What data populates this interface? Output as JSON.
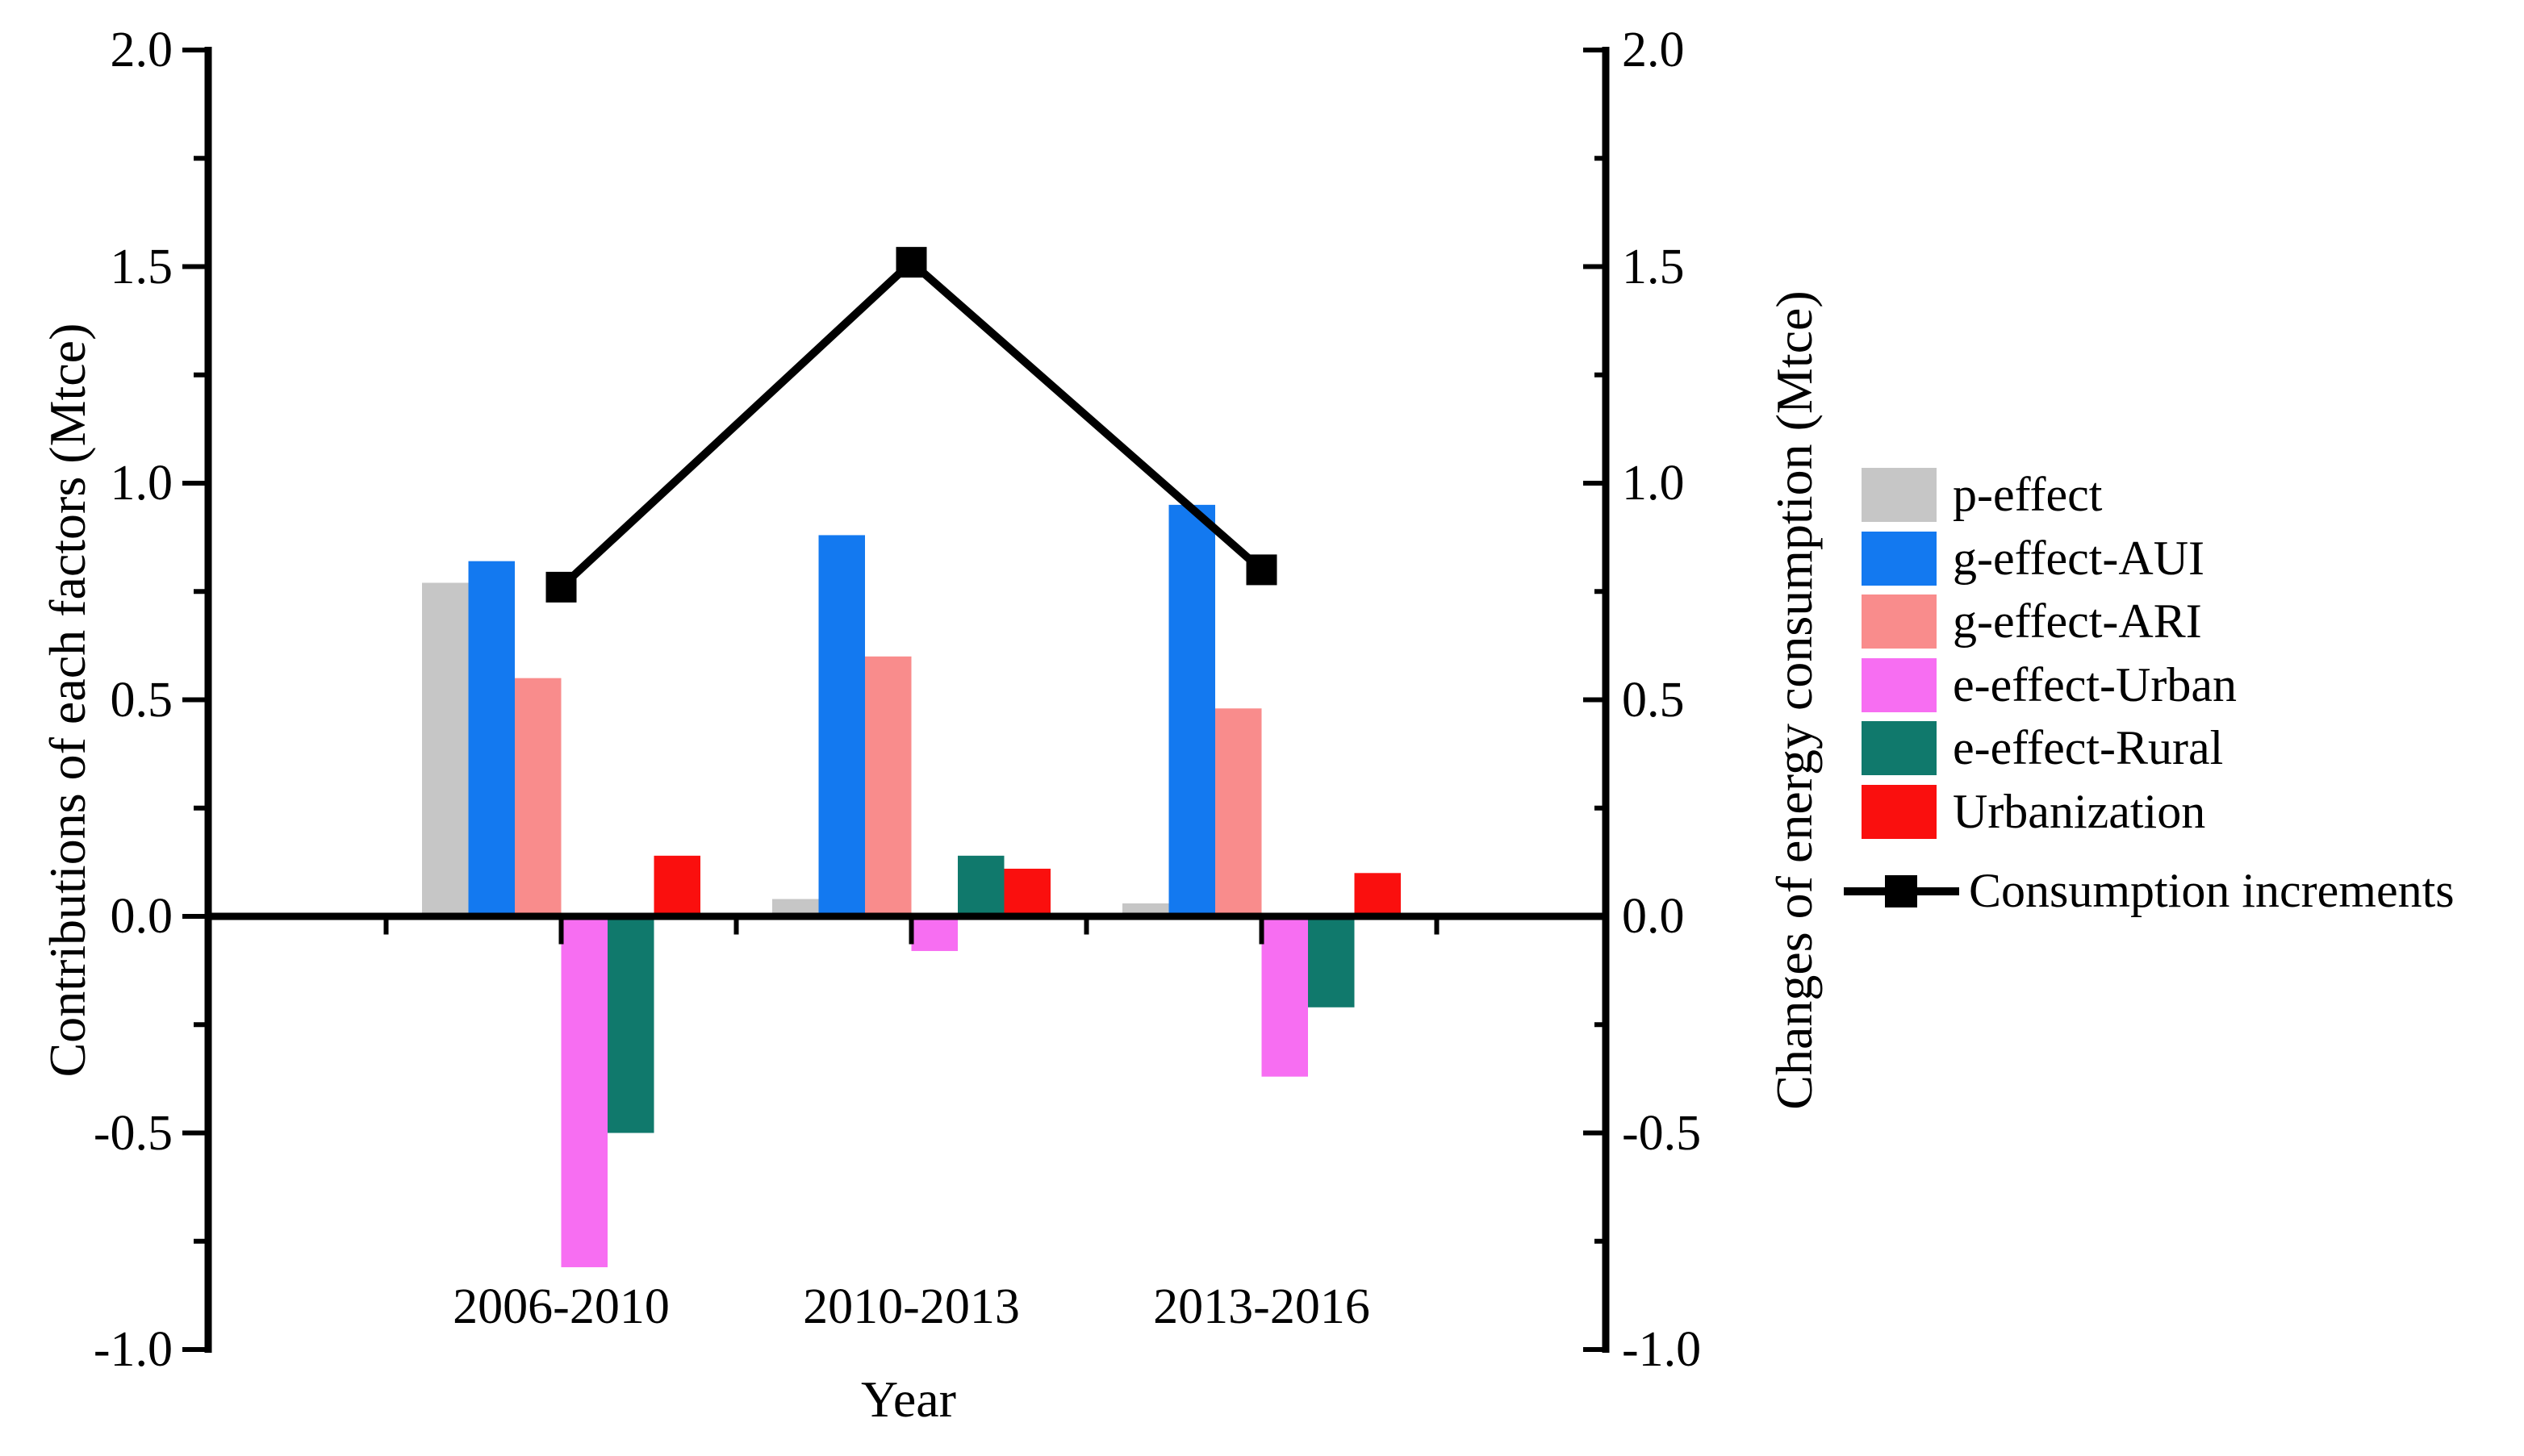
{
  "chart_data": {
    "type": "bar",
    "subtype": "grouped-bars-with-line-overlay-dual-axis",
    "categories": [
      "2006-2010",
      "2010-2013",
      "2013-2016"
    ],
    "series": [
      {
        "name": "p-effect",
        "type": "bar",
        "color": "#c6c6c6",
        "values": [
          0.77,
          0.04,
          0.03
        ]
      },
      {
        "name": "g-effect-AUI",
        "type": "bar",
        "color": "#1379f0",
        "values": [
          0.82,
          0.88,
          0.95
        ]
      },
      {
        "name": "g-effect-ARI",
        "type": "bar",
        "color": "#f98c8c",
        "values": [
          0.55,
          0.6,
          0.48
        ]
      },
      {
        "name": "e-effect-Urban",
        "type": "bar",
        "color": "#f76ef2",
        "values": [
          -0.81,
          -0.08,
          -0.37
        ]
      },
      {
        "name": "e-effect-Rural",
        "type": "bar",
        "color": "#10796c",
        "values": [
          -0.5,
          0.14,
          -0.21
        ]
      },
      {
        "name": "Urbanization",
        "type": "bar",
        "color": "#fa0f0e",
        "values": [
          0.14,
          0.11,
          0.1
        ]
      },
      {
        "name": "Consumption increments",
        "type": "line",
        "color": "#000000",
        "marker": "square",
        "values": [
          0.76,
          1.51,
          0.8
        ]
      }
    ],
    "title": "",
    "xlabel": "Year",
    "ylabel_left": "Contributions of each factors (Mtce)",
    "ylabel_right": "Changes of energy consumption (Mtce)",
    "ylim": [
      -1.0,
      2.0
    ],
    "ytick_step": 0.5,
    "minor_tick_step": 0.25,
    "grid": false,
    "legend_position": "right"
  },
  "axes": {
    "left": {
      "title": "Contributions of each factors (Mtce)",
      "ticks": [
        "2.0",
        "1.5",
        "1.0",
        "0.5",
        "0.0",
        "-0.5",
        "-1.0"
      ],
      "tick_values": [
        2.0,
        1.5,
        1.0,
        0.5,
        0.0,
        -0.5,
        -1.0
      ]
    },
    "right": {
      "title": "Changes of energy consumption (Mtce)",
      "ticks": [
        "2.0",
        "1.5",
        "1.0",
        "0.5",
        "0.0",
        "-0.5",
        "-1.0"
      ],
      "tick_values": [
        2.0,
        1.5,
        1.0,
        0.5,
        0.0,
        -0.5,
        -1.0
      ]
    },
    "x": {
      "title": "Year",
      "categories": [
        "2006-2010",
        "2010-2013",
        "2013-2016"
      ]
    }
  },
  "legend": {
    "items": [
      {
        "label": "p-effect",
        "color": "#c6c6c6",
        "kind": "swatch"
      },
      {
        "label": "g-effect-AUI",
        "color": "#1379f0",
        "kind": "swatch"
      },
      {
        "label": "g-effect-ARI",
        "color": "#f98c8c",
        "kind": "swatch"
      },
      {
        "label": "e-effect-Urban",
        "color": "#f76ef2",
        "kind": "swatch"
      },
      {
        "label": "e-effect-Rural",
        "color": "#10796c",
        "kind": "swatch"
      },
      {
        "label": "Urbanization",
        "color": "#fa0f0e",
        "kind": "swatch"
      },
      {
        "label": "Consumption increments",
        "color": "#000000",
        "kind": "line-square-marker"
      }
    ]
  },
  "colors": {
    "axis": "#000000",
    "text": "#000000",
    "background": "#ffffff"
  }
}
